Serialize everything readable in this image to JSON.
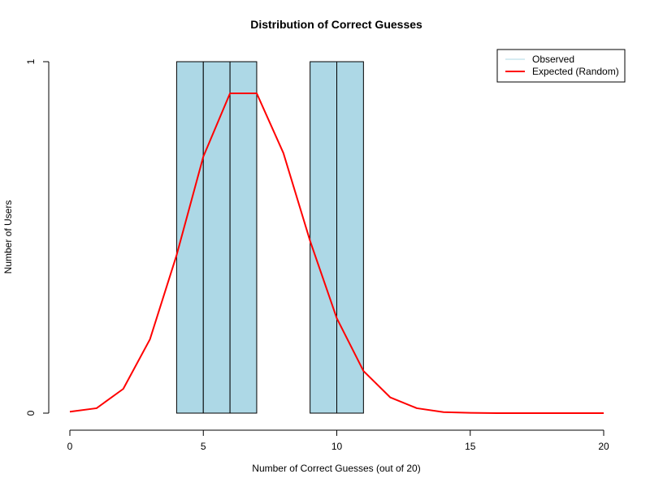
{
  "chart_data": {
    "type": "bar",
    "title": "Distribution of Correct Guesses",
    "xlabel": "Number of Correct Guesses (out of 20)",
    "ylabel": "Number of Users",
    "xlim": [
      0,
      20
    ],
    "ylim": [
      0,
      1
    ],
    "x_ticks": [
      "0",
      "5",
      "10",
      "15",
      "20"
    ],
    "y_ticks": [
      "0",
      "1"
    ],
    "grid": false,
    "legend_position": "top-right",
    "colors": {
      "bar_fill": "#add8e6",
      "bar_stroke": "#000000",
      "expected_line": "#ff0000"
    },
    "series": [
      {
        "name": "Observed",
        "kind": "histogram",
        "bins": [
          {
            "start": 4,
            "end": 5,
            "count": 1
          },
          {
            "start": 5,
            "end": 6,
            "count": 1
          },
          {
            "start": 6,
            "end": 7,
            "count": 1
          },
          {
            "start": 9,
            "end": 10,
            "count": 1
          },
          {
            "start": 10,
            "end": 11,
            "count": 1
          }
        ]
      },
      {
        "name": "Expected (Random)",
        "kind": "line",
        "x": [
          0,
          1,
          2,
          3,
          4,
          5,
          6,
          7,
          8,
          9,
          10,
          11,
          12,
          13,
          14,
          15,
          16,
          17,
          18,
          19,
          20
        ],
        "y": [
          0.004,
          0.014,
          0.069,
          0.21,
          0.45,
          0.73,
          0.91,
          0.91,
          0.74,
          0.49,
          0.27,
          0.12,
          0.045,
          0.014,
          0.003,
          0.001,
          0,
          0,
          0,
          0,
          0
        ]
      }
    ]
  }
}
